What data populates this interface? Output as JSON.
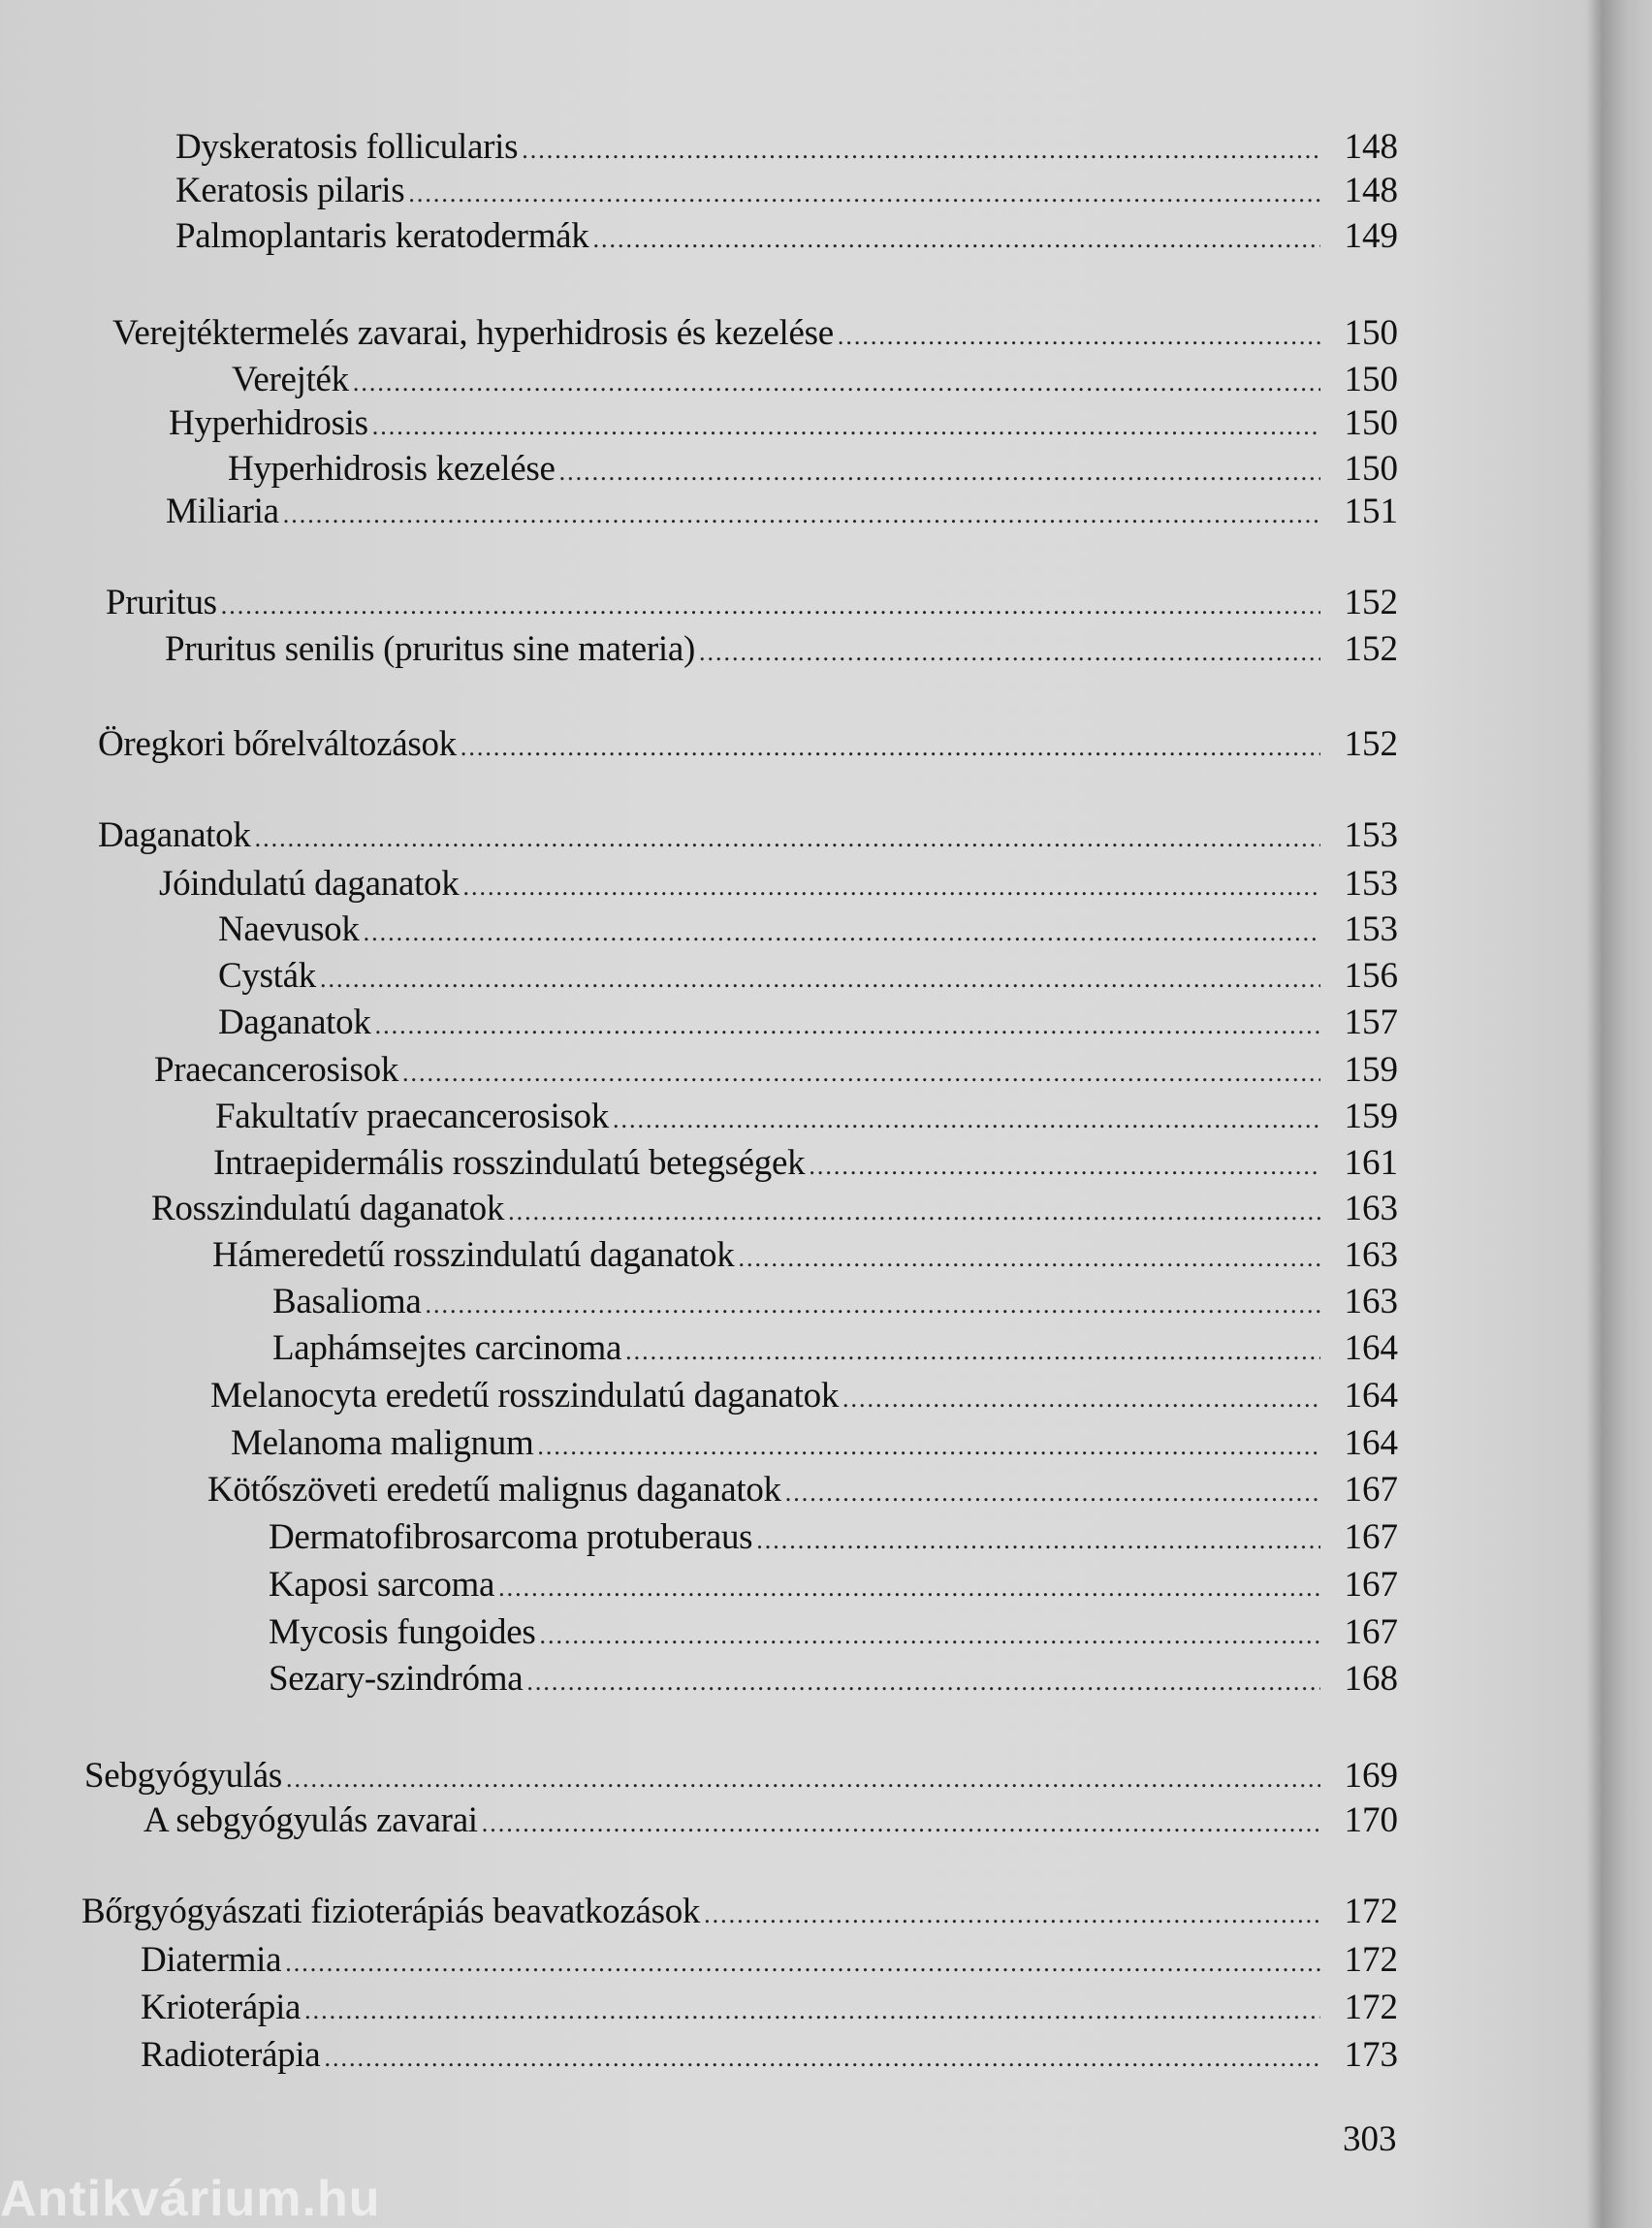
{
  "entries": [
    {
      "title": "Dyskeratosis follicularis",
      "page": "148",
      "level": 2
    },
    {
      "title": "Keratosis pilaris",
      "page": "148",
      "level": 2
    },
    {
      "title": "Palmoplantaris keratodermák",
      "page": "149",
      "level": 2
    },
    {
      "title": "Verejtéktermelés zavarai, hyperhidrosis és kezelése",
      "page": "150",
      "level": 1
    },
    {
      "title": "Verejték",
      "page": "150",
      "level": 3
    },
    {
      "title": "Hyperhidrosis",
      "page": "150",
      "level": 2
    },
    {
      "title": "Hyperhidrosis kezelése",
      "page": "150",
      "level": 3
    },
    {
      "title": "Miliaria",
      "page": "151",
      "level": 2
    },
    {
      "title": "Pruritus",
      "page": "152",
      "level": 1
    },
    {
      "title": "Pruritus senilis (pruritus sine materia)",
      "page": "152",
      "level": 2
    },
    {
      "title": "Öregkori bőrelváltozások",
      "page": "152",
      "level": 1
    },
    {
      "title": "Daganatok",
      "page": "153",
      "level": 1
    },
    {
      "title": "Jóindulatú daganatok",
      "page": "153",
      "level": 2
    },
    {
      "title": "Naevusok",
      "page": "153",
      "level": 3
    },
    {
      "title": "Cysták",
      "page": "156",
      "level": 3
    },
    {
      "title": "Daganatok",
      "page": "157",
      "level": 3
    },
    {
      "title": "Praecancerosisok",
      "page": "159",
      "level": 2
    },
    {
      "title": "Fakultatív praecancerosisok",
      "page": "159",
      "level": 3
    },
    {
      "title": "Intraepidermális rosszindulatú betegségek",
      "page": "161",
      "level": 3
    },
    {
      "title": "Rosszindulatú daganatok",
      "page": "163",
      "level": 2
    },
    {
      "title": "Hámeredetű rosszindulatú daganatok",
      "page": "163",
      "level": 3
    },
    {
      "title": "Basalioma",
      "page": "163",
      "level": 4
    },
    {
      "title": "Laphámsejtes carcinoma",
      "page": "164",
      "level": 4
    },
    {
      "title": "Melanocyta eredetű rosszindulatú daganatok",
      "page": "164",
      "level": 3
    },
    {
      "title": "Melanoma malignum",
      "page": "164",
      "level": 4
    },
    {
      "title": "Kötőszöveti eredetű malignus daganatok",
      "page": "167",
      "level": 3
    },
    {
      "title": "Dermatofibrosarcoma protuberaus",
      "page": "167",
      "level": 4
    },
    {
      "title": "Kaposi sarcoma",
      "page": "167",
      "level": 4
    },
    {
      "title": "Mycosis fungoides",
      "page": "167",
      "level": 4
    },
    {
      "title": "Sezary-szindróma",
      "page": "168",
      "level": 4
    },
    {
      "title": "Sebgyógyulás",
      "page": "169",
      "level": 1
    },
    {
      "title": "A sebgyógyulás zavarai",
      "page": "170",
      "level": 2
    },
    {
      "title": "Bőrgyógyászati fizioterápiás beavatkozások",
      "page": "172",
      "level": 1
    },
    {
      "title": "Diatermia",
      "page": "172",
      "level": 2
    },
    {
      "title": "Krioterápia",
      "page": "172",
      "level": 2
    },
    {
      "title": "Radioterápia",
      "page": "173",
      "level": 2
    }
  ],
  "folio": "303",
  "watermark": "Antikvárium.hu"
}
